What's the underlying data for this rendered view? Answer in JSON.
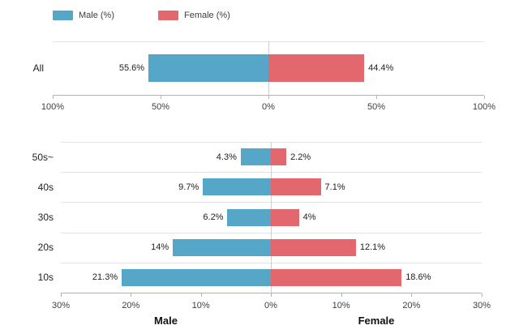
{
  "colors": {
    "male": "#56a6c8",
    "female": "#e3686d",
    "grid": "#e3e3e3",
    "center_line": "#cfcfcf",
    "axis_line": "#b3b3b3",
    "tick_text": "#3c4043",
    "value_text": "#202124",
    "category_text": "#202124",
    "title_text": "#111111"
  },
  "legend": {
    "items": [
      {
        "label": "Male (%)",
        "series": "male"
      },
      {
        "label": "Female (%)",
        "series": "female"
      }
    ]
  },
  "chart_data": [
    {
      "id": "overall",
      "type": "bar",
      "orientation": "diverging-horizontal",
      "title": "",
      "categories": [
        "All"
      ],
      "series": [
        {
          "name": "Male (%)",
          "side": "left",
          "color_key": "male",
          "values": [
            55.6
          ]
        },
        {
          "name": "Female (%)",
          "side": "right",
          "color_key": "female",
          "values": [
            44.4
          ]
        }
      ],
      "axis": {
        "max": 100,
        "tick_values": [
          -100,
          -50,
          0,
          50,
          100
        ],
        "tick_labels": [
          "100%",
          "50%",
          "0%",
          "50%",
          "100%"
        ]
      },
      "grid": true,
      "legend_position": "top",
      "value_label_suffix": "%"
    },
    {
      "id": "by-age",
      "type": "bar",
      "orientation": "diverging-horizontal",
      "title": "",
      "categories": [
        "50s~",
        "40s",
        "30s",
        "20s",
        "10s"
      ],
      "series": [
        {
          "name": "Male (%)",
          "side": "left",
          "color_key": "male",
          "values": [
            4.3,
            9.7,
            6.2,
            14,
            21.3
          ]
        },
        {
          "name": "Female (%)",
          "side": "right",
          "color_key": "female",
          "values": [
            2.2,
            7.1,
            4,
            12.1,
            18.6
          ]
        }
      ],
      "axis": {
        "max": 30,
        "tick_values": [
          -30,
          -20,
          -10,
          0,
          10,
          20,
          30
        ],
        "tick_labels": [
          "30%",
          "20%",
          "10%",
          "0%",
          "10%",
          "20%",
          "30%"
        ]
      },
      "axis_titles": {
        "left": "Male",
        "right": "Female"
      },
      "grid": true,
      "value_label_suffix": "%"
    }
  ]
}
